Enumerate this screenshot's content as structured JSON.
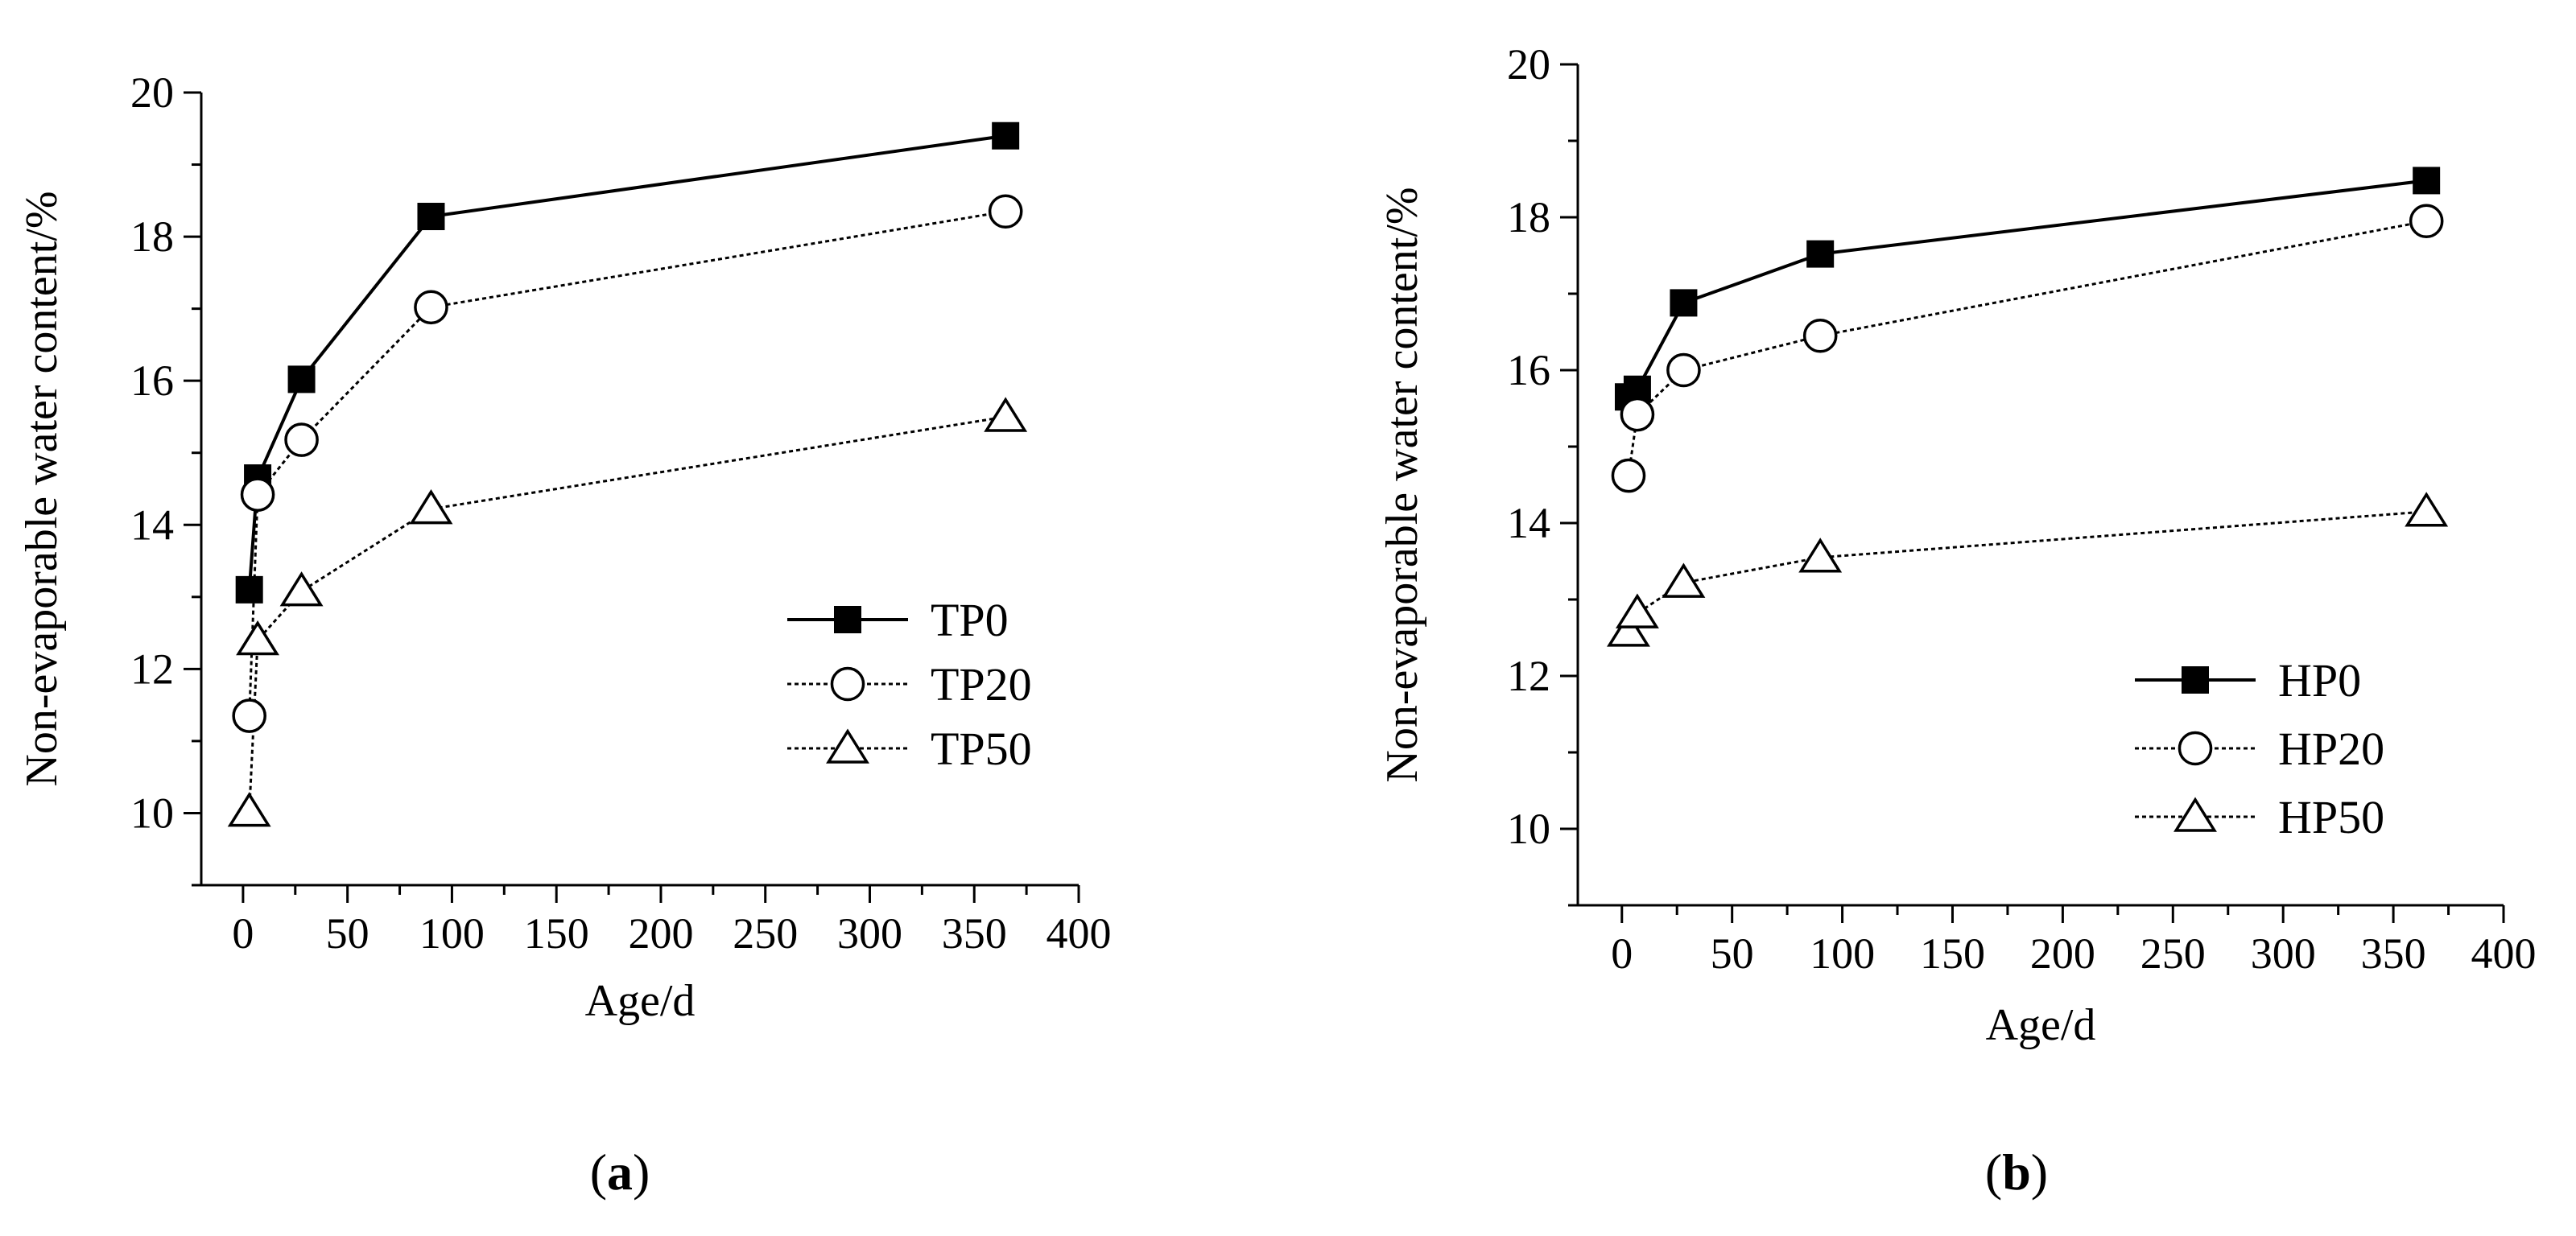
{
  "chart_data": [
    {
      "type": "line",
      "panel": "(a)",
      "xlabel": "Age/d",
      "ylabel": "Non-evaporable water content/%",
      "xlim": [
        -20,
        400
      ],
      "ylim": [
        9,
        20
      ],
      "xticks": [
        0,
        50,
        100,
        150,
        200,
        250,
        300,
        350,
        400
      ],
      "yticks": [
        10,
        12,
        14,
        16,
        18,
        20
      ],
      "legend_position": "center-right",
      "series": [
        {
          "name": "TP0",
          "marker": "square-filled",
          "line": "solid",
          "x": [
            3,
            7,
            28,
            90,
            365
          ],
          "y": [
            13.1,
            14.65,
            16.02,
            18.28,
            19.4
          ]
        },
        {
          "name": "TP20",
          "marker": "circle-open",
          "line": "dotted",
          "x": [
            3,
            7,
            28,
            90,
            365
          ],
          "y": [
            11.35,
            14.42,
            15.18,
            17.02,
            18.35
          ]
        },
        {
          "name": "TP50",
          "marker": "triangle-open",
          "line": "dotted",
          "x": [
            3,
            7,
            28,
            90,
            365
          ],
          "y": [
            10.02,
            12.4,
            13.08,
            14.22,
            15.5
          ]
        }
      ]
    },
    {
      "type": "line",
      "panel": "(b)",
      "xlabel": "Age/d",
      "ylabel": "Non-evaporable water content/%",
      "xlim": [
        -20,
        400
      ],
      "ylim": [
        9,
        20
      ],
      "xticks": [
        0,
        50,
        100,
        150,
        200,
        250,
        300,
        350,
        400
      ],
      "yticks": [
        10,
        12,
        14,
        16,
        18,
        20
      ],
      "legend_position": "bottom-right",
      "series": [
        {
          "name": "HP0",
          "marker": "square-filled",
          "line": "solid",
          "x": [
            3,
            7,
            28,
            90,
            365
          ],
          "y": [
            15.65,
            15.75,
            16.88,
            17.52,
            18.48
          ]
        },
        {
          "name": "HP20",
          "marker": "circle-open",
          "line": "dotted",
          "x": [
            3,
            7,
            28,
            90,
            365
          ],
          "y": [
            14.62,
            15.42,
            16.0,
            16.45,
            17.95
          ]
        },
        {
          "name": "HP50",
          "marker": "triangle-open",
          "line": "dotted",
          "x": [
            3,
            7,
            28,
            90,
            365
          ],
          "y": [
            12.58,
            12.82,
            13.22,
            13.55,
            14.15
          ]
        }
      ]
    }
  ]
}
